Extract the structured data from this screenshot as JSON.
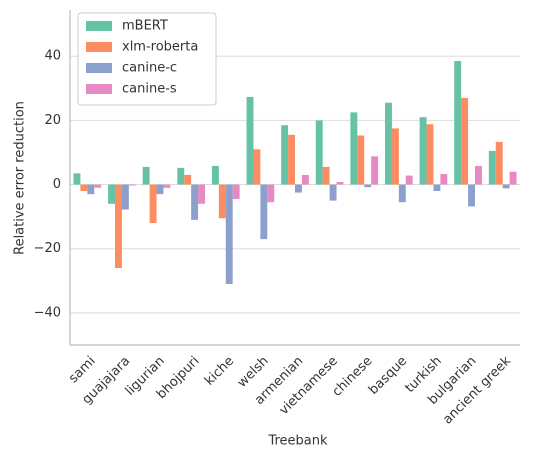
{
  "chart_data": {
    "type": "bar",
    "x_label": "Treebank",
    "y_label": "Relative error reduction",
    "categories": [
      "sami",
      "guajajara",
      "ligurian",
      "bhojpuri",
      "kiche",
      "welsh",
      "armenian",
      "vietnamese",
      "chinese",
      "basque",
      "turkish",
      "bulgarian",
      "ancient greek"
    ],
    "series": [
      {
        "name": "mBERT",
        "color": "#66c2a5",
        "values": [
          3.5,
          -6,
          5.5,
          5.2,
          5.8,
          27.3,
          18.5,
          20,
          22.5,
          25.5,
          21,
          38.5,
          10.5
        ]
      },
      {
        "name": "xlm-roberta",
        "color": "#fc8d62",
        "values": [
          -2,
          -26,
          -12,
          3,
          -10.5,
          11,
          15.5,
          5.5,
          15.3,
          17.5,
          18.8,
          27,
          13.3
        ]
      },
      {
        "name": "canine-c",
        "color": "#8da0cb",
        "values": [
          -3,
          -7.8,
          -3,
          -11,
          -31,
          -17,
          -2.5,
          -5,
          -0.8,
          -5.5,
          -2,
          -6.8,
          -1.2
        ]
      },
      {
        "name": "canine-s",
        "color": "#e78ac3",
        "values": [
          -1,
          -0.3,
          -1,
          -6,
          -4.5,
          -5.5,
          3,
          0.8,
          8.8,
          2.8,
          3.3,
          5.8,
          4
        ]
      }
    ],
    "ylim": [
      -50,
      54.4
    ],
    "yticks": [
      {
        "value": -40,
        "label": "−40"
      },
      {
        "value": -20,
        "label": "−20"
      },
      0,
      20,
      40
    ],
    "grid": true,
    "legend": "upper left"
  }
}
